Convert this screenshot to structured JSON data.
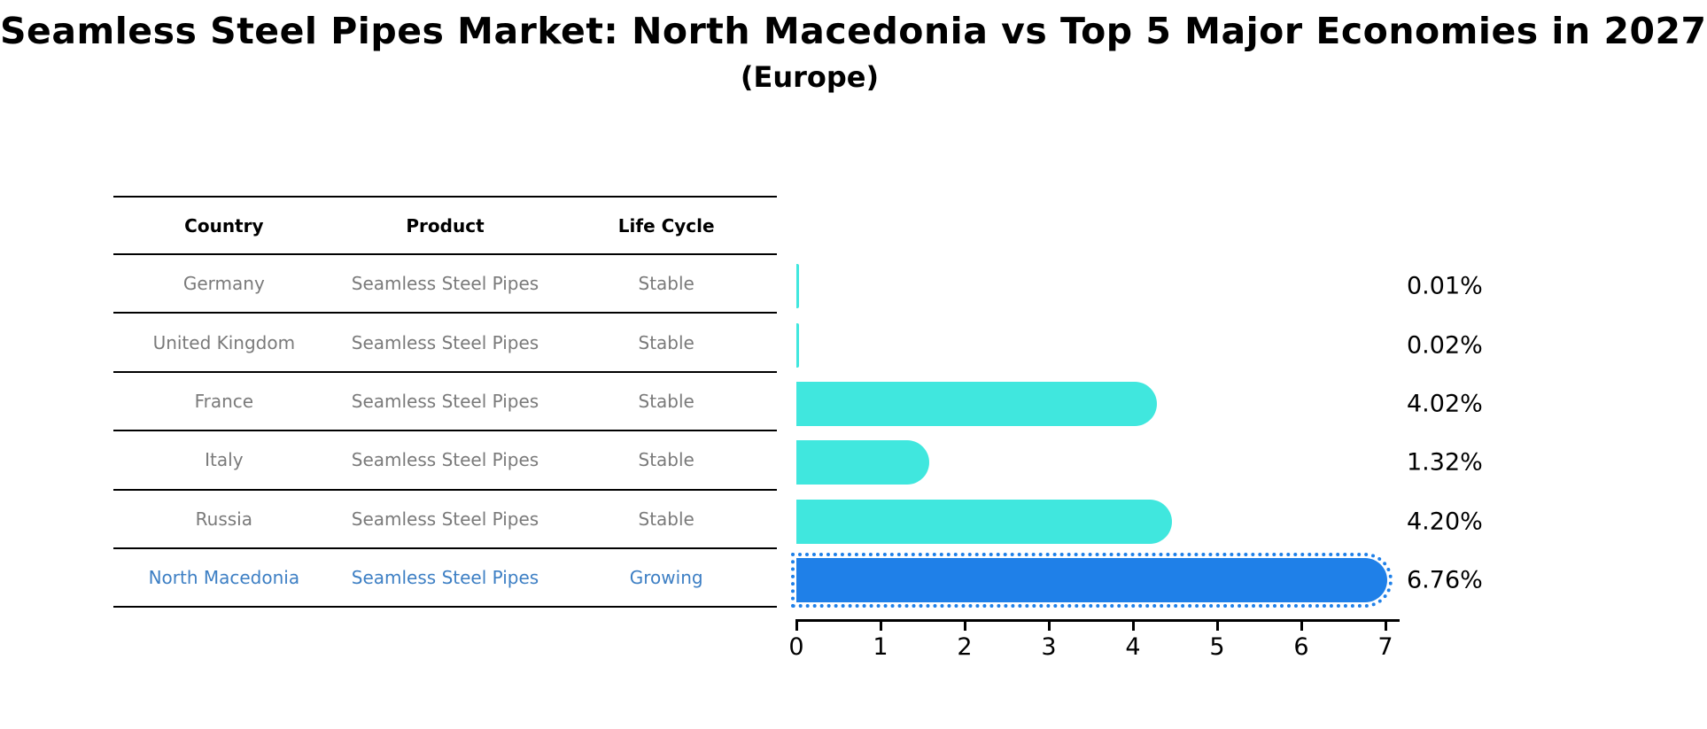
{
  "title": "Seamless Steel Pipes Market: North Macedonia vs Top 5 Major Economies in 2027",
  "subtitle": "(Europe)",
  "table": {
    "headers": [
      "Country",
      "Product",
      "Life Cycle"
    ],
    "rows": [
      {
        "country": "Germany",
        "product": "Seamless Steel Pipes",
        "life_cycle": "Stable",
        "label": "0.01%",
        "highlight": false
      },
      {
        "country": "United Kingdom",
        "product": "Seamless Steel Pipes",
        "life_cycle": "Stable",
        "label": "0.02%",
        "highlight": false
      },
      {
        "country": "France",
        "product": "Seamless Steel Pipes",
        "life_cycle": "Stable",
        "label": "4.02%",
        "highlight": false
      },
      {
        "country": "Italy",
        "product": "Seamless Steel Pipes",
        "life_cycle": "Stable",
        "label": "1.32%",
        "highlight": false
      },
      {
        "country": "Russia",
        "product": "Seamless Steel Pipes",
        "life_cycle": "Stable",
        "label": "4.20%",
        "highlight": false
      },
      {
        "country": "North Macedonia",
        "product": "Seamless Steel Pipes",
        "life_cycle": "Growing",
        "label": "6.76%",
        "highlight": true
      }
    ]
  },
  "chart_data": {
    "type": "bar",
    "orientation": "horizontal",
    "title": "Seamless Steel Pipes Market: North Macedonia vs Top 5 Major Economies in 2027",
    "subtitle": "(Europe)",
    "categories": [
      "Germany",
      "United Kingdom",
      "France",
      "Italy",
      "Russia",
      "North Macedonia"
    ],
    "values": [
      0.01,
      0.02,
      4.02,
      1.32,
      4.2,
      6.76
    ],
    "value_labels": [
      "0.01%",
      "0.02%",
      "4.02%",
      "1.32%",
      "4.20%",
      "6.76%"
    ],
    "xlim": [
      0,
      7
    ],
    "x_ticks": [
      0,
      1,
      2,
      3,
      4,
      5,
      6,
      7
    ],
    "grid": false,
    "legend": false,
    "bar_color": "#40e7de",
    "highlight_color": "#1f80e8",
    "highlight_index": 5
  },
  "colors": {
    "bar_cyan": "#40e7de",
    "bar_blue": "#1f80e8",
    "highlight_text_blue": "#3d7fc4",
    "row_text_gray": "#7a7a7a",
    "line_black": "#000000",
    "background": "#ffffff"
  }
}
